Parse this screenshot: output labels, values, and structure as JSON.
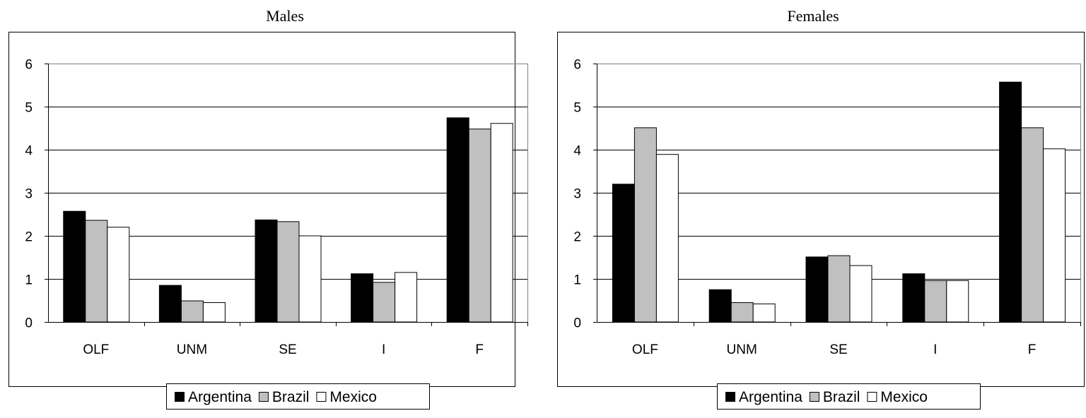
{
  "chart_data": [
    {
      "type": "bar",
      "title": "Males",
      "categories": [
        "OLF",
        "UNM",
        "SE",
        "I",
        "F"
      ],
      "series": [
        {
          "name": "Argentina",
          "values": [
            2.57,
            0.85,
            2.37,
            1.12,
            4.74
          ]
        },
        {
          "name": "Brazil",
          "values": [
            2.36,
            0.49,
            2.33,
            0.92,
            4.48
          ]
        },
        {
          "name": "Mexico",
          "values": [
            2.2,
            0.45,
            2.0,
            1.15,
            4.61
          ]
        }
      ],
      "ylim": [
        0,
        6
      ],
      "yticks": [
        "0",
        "1",
        "2",
        "3",
        "4",
        "5",
        "6"
      ],
      "grid": true,
      "legend": "bottom"
    },
    {
      "type": "bar",
      "title": "Females",
      "categories": [
        "OLF",
        "UNM",
        "SE",
        "I",
        "F"
      ],
      "series": [
        {
          "name": "Argentina",
          "values": [
            3.2,
            0.75,
            1.51,
            1.12,
            5.57
          ]
        },
        {
          "name": "Brazil",
          "values": [
            4.51,
            0.45,
            1.54,
            0.96,
            4.51
          ]
        },
        {
          "name": "Mexico",
          "values": [
            3.89,
            0.42,
            1.31,
            0.96,
            4.02
          ]
        }
      ],
      "ylim": [
        0,
        6
      ],
      "yticks": [
        "0",
        "1",
        "2",
        "3",
        "4",
        "5",
        "6"
      ],
      "grid": true,
      "legend": "bottom"
    }
  ],
  "colors": {
    "Argentina": "#000000",
    "Brazil": "#c0c0c0",
    "Mexico": "#ffffff"
  }
}
